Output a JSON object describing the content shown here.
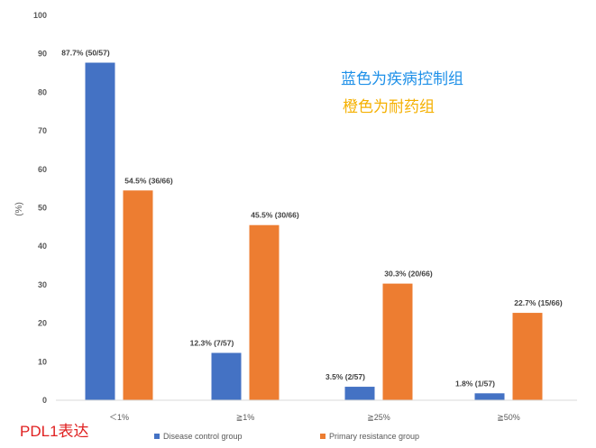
{
  "chart_data": {
    "type": "bar",
    "ylabel": "(%)",
    "ylim": [
      0,
      100
    ],
    "yticks": [
      0,
      10,
      20,
      30,
      40,
      50,
      60,
      70,
      80,
      90,
      100
    ],
    "categories": [
      "＜1%",
      "≧1%",
      "≧25%",
      "≧50%"
    ],
    "series": [
      {
        "name": "Disease control group",
        "color": "#4472C4",
        "values": [
          87.7,
          12.3,
          3.5,
          1.8
        ],
        "labels": [
          "87.7% (50/57)",
          "12.3% (7/57)",
          "3.5% (2/57)",
          "1.8% (1/57)"
        ]
      },
      {
        "name": "Primary resistance group",
        "color": "#ED7D31",
        "values": [
          54.5,
          45.5,
          30.3,
          22.7
        ],
        "labels": [
          "54.5% (36/66)",
          "45.5% (30/66)",
          "30.3% (20/66)",
          "22.7% (15/66)"
        ]
      }
    ],
    "legend_position": "bottom",
    "grid": false
  },
  "annotations": {
    "blue_note": "蓝色为疾病控制组",
    "blue_note_color": "#1E90E8",
    "orange_note": "橙色为耐药组",
    "orange_note_color": "#F5B000",
    "footer": "PDL1表达",
    "footer_color": "#E02020"
  }
}
